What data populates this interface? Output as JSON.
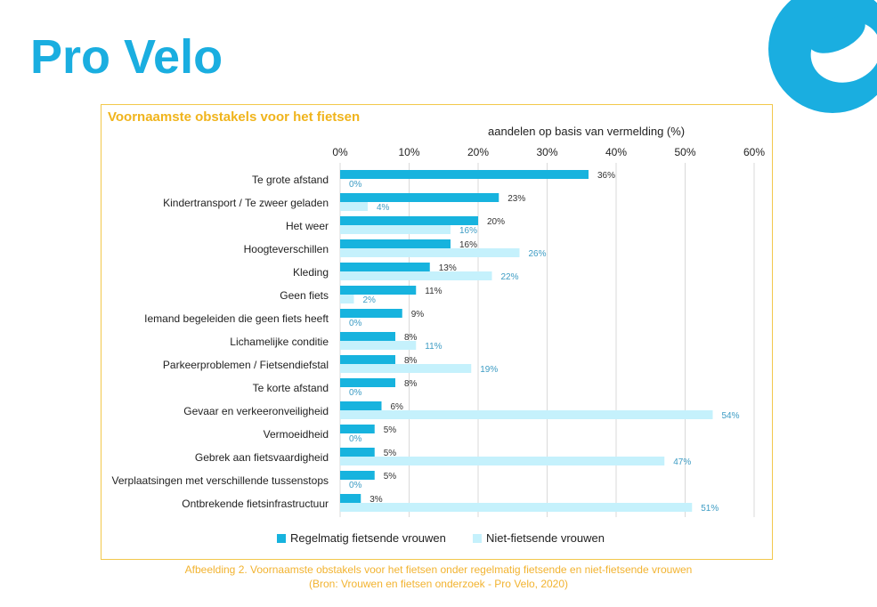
{
  "brand": {
    "logo_text": "Pro Velo",
    "accent": "#1aaee0"
  },
  "chart_data": {
    "type": "bar",
    "orientation": "horizontal",
    "title": "Voornaamste obstakels voor het fietsen",
    "xlabel": "aandelen op basis van vermelding (%)",
    "xlim": [
      0,
      60
    ],
    "xticks": [
      "0%",
      "10%",
      "20%",
      "30%",
      "40%",
      "50%",
      "60%"
    ],
    "xtick_values": [
      0,
      10,
      20,
      30,
      40,
      50,
      60
    ],
    "grid": true,
    "legend_position": "bottom",
    "categories": [
      "Te grote afstand",
      "Kindertransport / Te zweer geladen",
      "Het weer",
      "Hoogteverschillen",
      "Kleding",
      "Geen fiets",
      "Iemand begeleiden die geen fiets heeft",
      "Lichamelijke conditie",
      "Parkeerproblemen / Fietsendiefstal",
      "Te korte afstand",
      "Gevaar en verkeeronveiligheid",
      "Vermoeidheid",
      "Gebrek aan fietsvaardigheid",
      "Verplaatsingen met verschillende tussenstops",
      "Ontbrekende fietsinfrastructuur"
    ],
    "series": [
      {
        "name": "Regelmatig fietsende vrouwen",
        "color": "#17b3de",
        "values": [
          36,
          23,
          20,
          16,
          13,
          11,
          9,
          8,
          8,
          8,
          6,
          5,
          5,
          5,
          3
        ],
        "labels": [
          "36%",
          "23%",
          "20%",
          "16%",
          "13%",
          "11%",
          "9%",
          "8%",
          "8%",
          "8%",
          "6%",
          "5%",
          "5%",
          "5%",
          "3%"
        ]
      },
      {
        "name": "Niet-fietsende vrouwen",
        "color": "#c5f1fc",
        "values": [
          0,
          4,
          16,
          26,
          22,
          2,
          0,
          11,
          19,
          0,
          54,
          0,
          47,
          0,
          51
        ],
        "labels": [
          "0%",
          "4%",
          "16%",
          "26%",
          "22%",
          "2%",
          "0%",
          "11%",
          "19%",
          "0%",
          "54%",
          "0%",
          "47%",
          "0%",
          "51%"
        ]
      }
    ]
  },
  "caption": {
    "line1": "Afbeelding 2. Voornaamste obstakels voor het fietsen onder regelmatig fietsende en niet-fietsende vrouwen",
    "line2": "(Bron: Vrouwen en fietsen onderzoek - Pro Velo, 2020)"
  }
}
